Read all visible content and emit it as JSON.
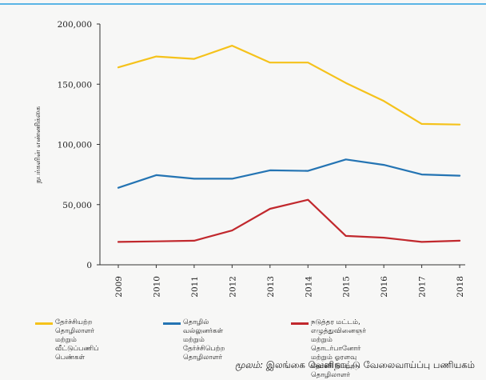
{
  "chart_data": {
    "type": "line",
    "x": [
      "2009",
      "2010",
      "2011",
      "2012",
      "2013",
      "2014",
      "2015",
      "2016",
      "2017",
      "2018"
    ],
    "ylabel": "நபர்களின் எண்ணிக்கை",
    "ylim": [
      0,
      200000
    ],
    "yticks": [
      "0",
      "50,000",
      "100,000",
      "150,000",
      "200,000"
    ],
    "ytick_values": [
      0,
      50000,
      100000,
      150000,
      200000
    ],
    "grid": false,
    "legend_position": "bottom",
    "series": [
      {
        "name": "தேர்ச்சியற்ற தொழிலாளர் மற்றும் வீட்டுப்பணிப் பெண்கள்",
        "legend_lines": [
          "தேர்ச்சியற்ற தொழிலாளர்",
          "மற்றும் வீட்டுப்பணிப்",
          "பெண்கள்"
        ],
        "color": "#f5c21b",
        "values": [
          164000,
          173000,
          171000,
          182000,
          168000,
          168000,
          151000,
          136000,
          117000,
          116500
        ]
      },
      {
        "name": "தொழில் வல்லுனர்கள் மற்றும் தேர்ச்சிபெற்ற தொழிலாளர்",
        "legend_lines": [
          "தொழில் வல்லுனர்கள்",
          "மற்றும்",
          "தேர்ச்சிபெற்ற தொழிலாளர்"
        ],
        "color": "#2474b3",
        "values": [
          64000,
          74500,
          71500,
          71500,
          78500,
          78000,
          87500,
          83000,
          75000,
          74000
        ]
      },
      {
        "name": "நடுத்தர மட்டம், எழுத்துவினைஞர் மற்றும் தொடர்பானோர் மற்றும் ஓரளவு தேர்ச்சி பெற்ற தொழிலாளர்",
        "legend_lines": [
          "நடுத்தர மட்டம், எழுத்துவினைஞர்",
          "மற்றும் தொடர்பானோர்",
          "மற்றும் ஓரளவு தேர்ச்சி பெற்ற தொழிலாளர்"
        ],
        "color": "#c1282d",
        "values": [
          19000,
          19500,
          20000,
          28500,
          46500,
          54000,
          24000,
          22500,
          19000,
          20000
        ]
      }
    ]
  },
  "source": {
    "label": "மூலம்:",
    "text": "இலங்கை வெளிநாட்டு வேலைவாய்ப்பு பணியகம்"
  }
}
